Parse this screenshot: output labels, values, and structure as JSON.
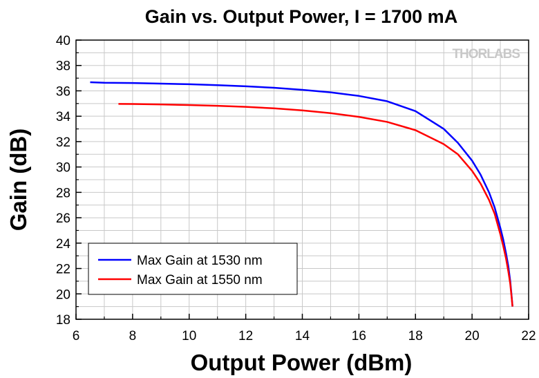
{
  "chart_data": {
    "type": "line",
    "title": "Gain vs. Output Power, I = 1700 mA",
    "xlabel": "Output Power (dBm)",
    "ylabel": "Gain (dB)",
    "xlim": [
      6,
      22
    ],
    "ylim": [
      18,
      40
    ],
    "xticks": [
      6,
      8,
      10,
      12,
      14,
      16,
      18,
      20,
      22
    ],
    "yticks": [
      18,
      20,
      22,
      24,
      26,
      28,
      30,
      32,
      34,
      36,
      38,
      40
    ],
    "grid": true,
    "legend_position": "bottom-left",
    "watermark": "THORLABS",
    "series": [
      {
        "name": "Max Gain at 1530 nm",
        "color": "#0000ff",
        "points": [
          [
            6.5,
            36.68
          ],
          [
            7,
            36.64
          ],
          [
            8,
            36.62
          ],
          [
            9,
            36.57
          ],
          [
            10,
            36.52
          ],
          [
            11,
            36.45
          ],
          [
            12,
            36.36
          ],
          [
            13,
            36.24
          ],
          [
            14,
            36.08
          ],
          [
            15,
            35.88
          ],
          [
            16,
            35.6
          ],
          [
            17,
            35.18
          ],
          [
            18,
            34.4
          ],
          [
            19,
            33.0
          ],
          [
            19.5,
            31.9
          ],
          [
            20,
            30.5
          ],
          [
            20.3,
            29.4
          ],
          [
            20.6,
            28.0
          ],
          [
            20.8,
            26.8
          ],
          [
            21.0,
            25.2
          ],
          [
            21.1,
            24.3
          ],
          [
            21.2,
            23.2
          ],
          [
            21.28,
            22.2
          ],
          [
            21.35,
            21.0
          ],
          [
            21.4,
            19.8
          ],
          [
            21.43,
            19.0
          ]
        ]
      },
      {
        "name": "Max Gain at 1550 nm",
        "color": "#ff0000",
        "points": [
          [
            7.5,
            34.97
          ],
          [
            8,
            34.96
          ],
          [
            9,
            34.93
          ],
          [
            10,
            34.88
          ],
          [
            11,
            34.82
          ],
          [
            12,
            34.74
          ],
          [
            13,
            34.62
          ],
          [
            14,
            34.46
          ],
          [
            15,
            34.24
          ],
          [
            16,
            33.95
          ],
          [
            17,
            33.55
          ],
          [
            18,
            32.9
          ],
          [
            19,
            31.8
          ],
          [
            19.5,
            31.0
          ],
          [
            20,
            29.7
          ],
          [
            20.3,
            28.7
          ],
          [
            20.6,
            27.4
          ],
          [
            20.8,
            26.3
          ],
          [
            21.0,
            24.7
          ],
          [
            21.1,
            23.8
          ],
          [
            21.2,
            22.8
          ],
          [
            21.28,
            21.8
          ],
          [
            21.35,
            20.8
          ],
          [
            21.4,
            19.7
          ],
          [
            21.43,
            19.0
          ]
        ]
      }
    ]
  }
}
